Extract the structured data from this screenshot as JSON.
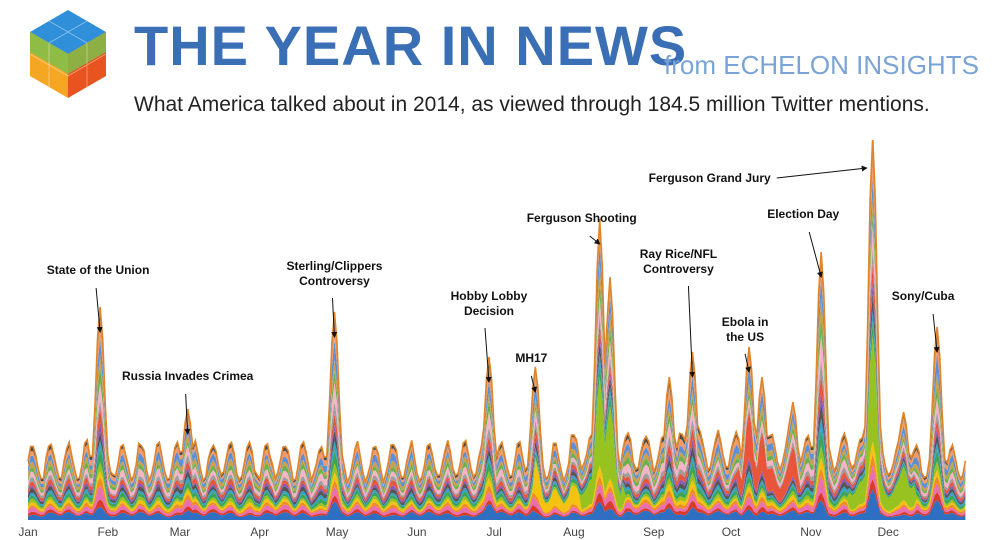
{
  "header": {
    "title": "THE YEAR IN NEWS",
    "source": "from ECHELON INSIGHTS",
    "subtitle": "What America talked about in 2014, as viewed through 184.5 million Twitter mentions."
  },
  "colors": {
    "title": "#3a6fb5",
    "source": "#7aa4d6",
    "logo": [
      "#2f8fd8",
      "#7cc04b",
      "#f5a623",
      "#e8541f"
    ],
    "layers": [
      "#2e6fc1",
      "#d93b2b",
      "#e86fb0",
      "#f08a24",
      "#f5c211",
      "#98c21f",
      "#3aa35c",
      "#35a3c8",
      "#555555",
      "#8a5bb5",
      "#e8553a",
      "#9e9e9e",
      "#f7b3c8",
      "#6ab04c",
      "#c9a14a",
      "#5b8fd6",
      "#f39c6b",
      "#4a4a4a"
    ]
  },
  "chart_data": {
    "type": "area",
    "stacked": true,
    "x_unit": "day of year 2014",
    "xlim": [
      0,
      365
    ],
    "x_ticks": [
      {
        "label": "Jan",
        "x": 0
      },
      {
        "label": "Feb",
        "x": 31
      },
      {
        "label": "Mar",
        "x": 59
      },
      {
        "label": "Apr",
        "x": 90
      },
      {
        "label": "May",
        "x": 120
      },
      {
        "label": "Jun",
        "x": 151
      },
      {
        "label": "Jul",
        "x": 181
      },
      {
        "label": "Aug",
        "x": 212
      },
      {
        "label": "Sep",
        "x": 243
      },
      {
        "label": "Oct",
        "x": 273
      },
      {
        "label": "Nov",
        "x": 304
      },
      {
        "label": "Dec",
        "x": 334
      }
    ],
    "ylim": [
      0,
      350
    ],
    "baseline_level": 55,
    "weekly_amplitude": 18,
    "peaks": [
      {
        "x": 28,
        "y": 180,
        "label": "State of the Union"
      },
      {
        "x": 62,
        "y": 78,
        "label": "Russia Invades Crimea"
      },
      {
        "x": 119,
        "y": 175,
        "label": "Sterling/Clippers Controversy"
      },
      {
        "x": 179,
        "y": 130,
        "label": "Hobby Lobby Decision"
      },
      {
        "x": 197,
        "y": 120,
        "label": "MH17"
      },
      {
        "x": 222,
        "y": 268,
        "label": "Ferguson Shooting"
      },
      {
        "x": 258,
        "y": 135,
        "label": "Ray Rice/NFL Controversy"
      },
      {
        "x": 280,
        "y": 140,
        "label": "Ebola in the US"
      },
      {
        "x": 308,
        "y": 235,
        "label": "Election Day"
      },
      {
        "x": 328,
        "y": 350,
        "label": "Ferguson Grand Jury"
      },
      {
        "x": 353,
        "y": 160,
        "label": "Sony/Cuba"
      }
    ],
    "secondary_peaks": [
      {
        "x": 226,
        "y": 210
      },
      {
        "x": 249,
        "y": 110
      },
      {
        "x": 285,
        "y": 110
      },
      {
        "x": 297,
        "y": 85
      },
      {
        "x": 340,
        "y": 75
      }
    ],
    "annotations": [
      {
        "lines": [
          "State of the Union"
        ],
        "x": 28
      },
      {
        "lines": [
          "Russia Invades Crimea"
        ],
        "x": 62
      },
      {
        "lines": [
          "Sterling/Clippers",
          "Controversy"
        ],
        "x": 119
      },
      {
        "lines": [
          "Hobby Lobby",
          "Decision"
        ],
        "x": 179
      },
      {
        "lines": [
          "MH17"
        ],
        "x": 197
      },
      {
        "lines": [
          "Ferguson Shooting"
        ],
        "x": 222
      },
      {
        "lines": [
          "Ray Rice/NFL",
          "Controversy"
        ],
        "x": 258
      },
      {
        "lines": [
          "Ebola in",
          "the US"
        ],
        "x": 280
      },
      {
        "lines": [
          "Election Day"
        ],
        "x": 308
      },
      {
        "lines": [
          "Ferguson Grand Jury"
        ],
        "x": 328
      },
      {
        "lines": [
          "Sony/Cuba"
        ],
        "x": 353
      }
    ]
  }
}
